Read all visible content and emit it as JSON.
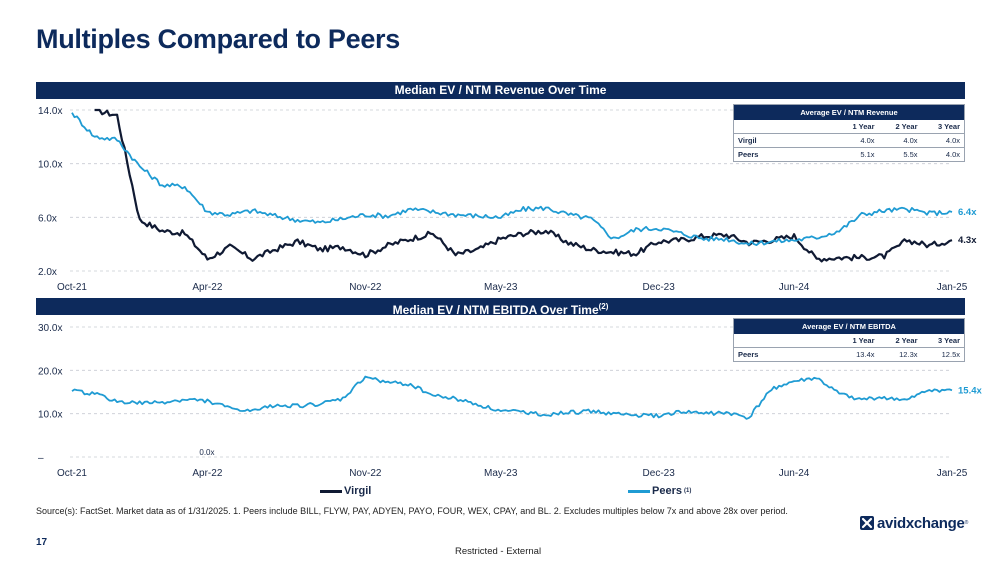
{
  "page": {
    "title": "Multiples Compared to Peers",
    "page_number": "17",
    "classification": "Restricted - External",
    "source": "Source(s): FactSet. Market data as of 1/31/2025. 1. Peers include BILL, FLYW, PAY, ADYEN, PAYO, FOUR, WEX, CPAY, and BL. 2. Excludes multiples below 7x and above 28x over period.",
    "logo_text": "avidxchange",
    "logo_tm": "®"
  },
  "colors": {
    "navy": "#0d2a5c",
    "virgil": "#101a33",
    "peers": "#1f9bd3",
    "grid": "#c8ccd3"
  },
  "legend": {
    "virgil_label": "Virgil",
    "peers_label": "Peers",
    "peers_note": "(1)"
  },
  "chart_data": [
    {
      "type": "line",
      "title": "Median EV / NTM Revenue Over Time",
      "title_note": "",
      "x_ticks": [
        "Oct-21",
        "Apr-22",
        "Nov-22",
        "May-23",
        "Dec-23",
        "Jun-24",
        "Jan-25"
      ],
      "y_ticks": [
        "14.0x",
        "10.0x",
        "6.0x",
        "2.0x"
      ],
      "ylim": [
        2,
        14
      ],
      "grid": "horizontal dashed",
      "series": [
        {
          "name": "Virgil",
          "color": "#101a33",
          "end_label": "4.3x",
          "points": [
            [
              "Nov-21",
              14.0
            ],
            [
              "Dec-21",
              13.6
            ],
            [
              "Jan-22",
              5.8
            ],
            [
              "Feb-22",
              5.0
            ],
            [
              "Mar-22",
              4.8
            ],
            [
              "Apr-22",
              2.9
            ],
            [
              "May-22",
              3.8
            ],
            [
              "Jun-22",
              2.9
            ],
            [
              "Jul-22",
              3.6
            ],
            [
              "Aug-22",
              4.2
            ],
            [
              "Sep-22",
              3.6
            ],
            [
              "Oct-22",
              3.8
            ],
            [
              "Nov-22",
              3.2
            ],
            [
              "Dec-22",
              3.9
            ],
            [
              "Jan-23",
              4.4
            ],
            [
              "Feb-23",
              4.8
            ],
            [
              "Mar-23",
              3.2
            ],
            [
              "Apr-23",
              3.6
            ],
            [
              "May-23",
              4.4
            ],
            [
              "Jun-23",
              4.8
            ],
            [
              "Jul-23",
              5.0
            ],
            [
              "Aug-23",
              4.1
            ],
            [
              "Sep-23",
              3.6
            ],
            [
              "Oct-23",
              3.4
            ],
            [
              "Nov-23",
              3.3
            ],
            [
              "Dec-23",
              4.2
            ],
            [
              "Jan-24",
              4.3
            ],
            [
              "Feb-24",
              4.6
            ],
            [
              "Mar-24",
              4.7
            ],
            [
              "Apr-24",
              4.1
            ],
            [
              "May-24",
              4.3
            ],
            [
              "Jun-24",
              4.6
            ],
            [
              "Jul-24",
              2.9
            ],
            [
              "Aug-24",
              3.0
            ],
            [
              "Sep-24",
              3.0
            ],
            [
              "Oct-24",
              3.1
            ],
            [
              "Nov-24",
              4.3
            ],
            [
              "Dec-24",
              3.9
            ],
            [
              "Jan-25",
              4.3
            ]
          ]
        },
        {
          "name": "Peers",
          "color": "#1f9bd3",
          "end_label": "6.4x",
          "points": [
            [
              "Oct-21",
              13.8
            ],
            [
              "Nov-21",
              12.0
            ],
            [
              "Dec-21",
              11.8
            ],
            [
              "Jan-22",
              9.8
            ],
            [
              "Feb-22",
              8.4
            ],
            [
              "Mar-22",
              8.3
            ],
            [
              "Apr-22",
              6.4
            ],
            [
              "May-22",
              6.2
            ],
            [
              "Jun-22",
              6.5
            ],
            [
              "Jul-22",
              6.1
            ],
            [
              "Aug-22",
              5.8
            ],
            [
              "Sep-22",
              5.6
            ],
            [
              "Oct-22",
              5.9
            ],
            [
              "Nov-22",
              6.2
            ],
            [
              "Dec-22",
              6.1
            ],
            [
              "Jan-23",
              6.6
            ],
            [
              "Feb-23",
              6.4
            ],
            [
              "Mar-23",
              6.2
            ],
            [
              "Apr-23",
              6.1
            ],
            [
              "May-23",
              6.0
            ],
            [
              "Jun-23",
              6.6
            ],
            [
              "Jul-23",
              6.7
            ],
            [
              "Aug-23",
              6.2
            ],
            [
              "Sep-23",
              5.9
            ],
            [
              "Oct-23",
              4.4
            ],
            [
              "Nov-23",
              5.1
            ],
            [
              "Dec-23",
              5.2
            ],
            [
              "Jan-24",
              4.8
            ],
            [
              "Feb-24",
              4.4
            ],
            [
              "Mar-24",
              4.4
            ],
            [
              "Apr-24",
              4.0
            ],
            [
              "May-24",
              4.2
            ],
            [
              "Jun-24",
              4.3
            ],
            [
              "Jul-24",
              4.5
            ],
            [
              "Aug-24",
              5.0
            ],
            [
              "Sep-24",
              6.2
            ],
            [
              "Oct-24",
              6.5
            ],
            [
              "Nov-24",
              6.6
            ],
            [
              "Dec-24",
              6.3
            ],
            [
              "Jan-25",
              6.4
            ]
          ]
        }
      ],
      "table": {
        "caption": "Average EV / NTM Revenue",
        "columns": [
          "",
          "1 Year",
          "2 Year",
          "3 Year"
        ],
        "rows": [
          [
            "Virgil",
            "4.0x",
            "4.0x",
            "4.0x"
          ],
          [
            "Peers",
            "5.1x",
            "5.5x",
            "4.0x"
          ]
        ]
      }
    },
    {
      "type": "line",
      "title": "Median EV / NTM EBITDA Over Time",
      "title_note": "(2)",
      "x_ticks": [
        "Oct-21",
        "Apr-22",
        "Nov-22",
        "May-23",
        "Dec-23",
        "Jun-24",
        "Jan-25"
      ],
      "y_ticks": [
        "30.0x",
        "20.0x",
        "10.0x",
        "–"
      ],
      "ylim": [
        0,
        30
      ],
      "grid": "horizontal dashed",
      "annotation": "0.0x",
      "series": [
        {
          "name": "Virgil",
          "color": "#101a33",
          "points": []
        },
        {
          "name": "Peers",
          "color": "#1f9bd3",
          "end_label": "15.4x",
          "points": [
            [
              "Oct-21",
              15.2
            ],
            [
              "Nov-21",
              14.6
            ],
            [
              "Dec-21",
              12.8
            ],
            [
              "Jan-22",
              12.4
            ],
            [
              "Feb-22",
              12.6
            ],
            [
              "Mar-22",
              13.2
            ],
            [
              "Apr-22",
              13.0
            ],
            [
              "May-22",
              11.2
            ],
            [
              "Jun-22",
              10.5
            ],
            [
              "Jul-22",
              12.0
            ],
            [
              "Aug-22",
              11.8
            ],
            [
              "Sep-22",
              12.2
            ],
            [
              "Oct-22",
              13.4
            ],
            [
              "Nov-22",
              18.5
            ],
            [
              "Dec-22",
              17.2
            ],
            [
              "Jan-23",
              16.8
            ],
            [
              "Feb-23",
              14.2
            ],
            [
              "Mar-23",
              13.5
            ],
            [
              "Apr-23",
              12.1
            ],
            [
              "May-23",
              10.6
            ],
            [
              "Jun-23",
              10.4
            ],
            [
              "Jul-23",
              9.8
            ],
            [
              "Aug-23",
              10.2
            ],
            [
              "Sep-23",
              10.6
            ],
            [
              "Oct-23",
              10.0
            ],
            [
              "Nov-23",
              9.6
            ],
            [
              "Dec-23",
              9.5
            ],
            [
              "Jan-24",
              10.4
            ],
            [
              "Feb-24",
              10.1
            ],
            [
              "Mar-24",
              10.2
            ],
            [
              "Apr-24",
              9.0
            ],
            [
              "May-24",
              15.8
            ],
            [
              "Jun-24",
              17.4
            ],
            [
              "Jul-24",
              18.2
            ],
            [
              "Aug-24",
              14.5
            ],
            [
              "Sep-24",
              13.2
            ],
            [
              "Oct-24",
              13.8
            ],
            [
              "Nov-24",
              13.0
            ],
            [
              "Dec-24",
              15.5
            ],
            [
              "Jan-25",
              15.4
            ]
          ]
        }
      ],
      "table": {
        "caption": "Average EV / NTM EBITDA",
        "columns": [
          "",
          "1 Year",
          "2 Year",
          "3 Year"
        ],
        "rows": [
          [
            "Peers",
            "13.4x",
            "12.3x",
            "12.5x"
          ]
        ]
      }
    }
  ]
}
